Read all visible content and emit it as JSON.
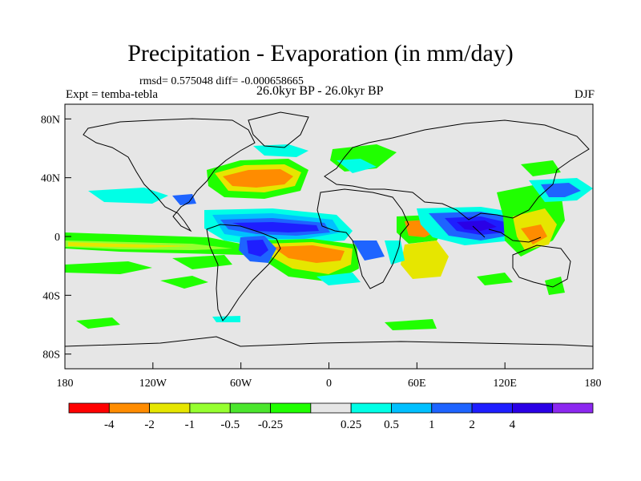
{
  "header": {
    "title": "Precipitation - Evaporation (in mm/day)",
    "stats": "rmsd= 0.575048 diff= -0.000658665",
    "experiment": "Expt = temba-tebla",
    "period": "26.0kyr BP - 26.0kyr BP",
    "season": "DJF"
  },
  "axes": {
    "lat_labels": [
      "80N",
      "40N",
      "0",
      "40S",
      "80S"
    ],
    "lat_values": [
      80,
      40,
      0,
      -40,
      -80
    ],
    "lon_labels": [
      "180",
      "120W",
      "60W",
      "0",
      "60E",
      "120E",
      "180"
    ],
    "lon_values": [
      -180,
      -120,
      -60,
      0,
      60,
      120,
      180
    ]
  },
  "colorbar": {
    "colors": [
      "#ff0000",
      "#ff8c00",
      "#e6e600",
      "#96ff30",
      "#4be62d",
      "#20ff00",
      "#e6e6e6",
      "#00ffe6",
      "#00c0ff",
      "#1e64ff",
      "#1e1eff",
      "#2a00e6",
      "#8c28f0"
    ],
    "tick_labels": [
      "-4",
      "-2",
      "-1",
      "-0.5",
      "-0.25",
      "0.25",
      "0.5",
      "1",
      "2",
      "4"
    ]
  },
  "colors": {
    "land_background": "#e6e6e6",
    "coastline": "#000000"
  }
}
